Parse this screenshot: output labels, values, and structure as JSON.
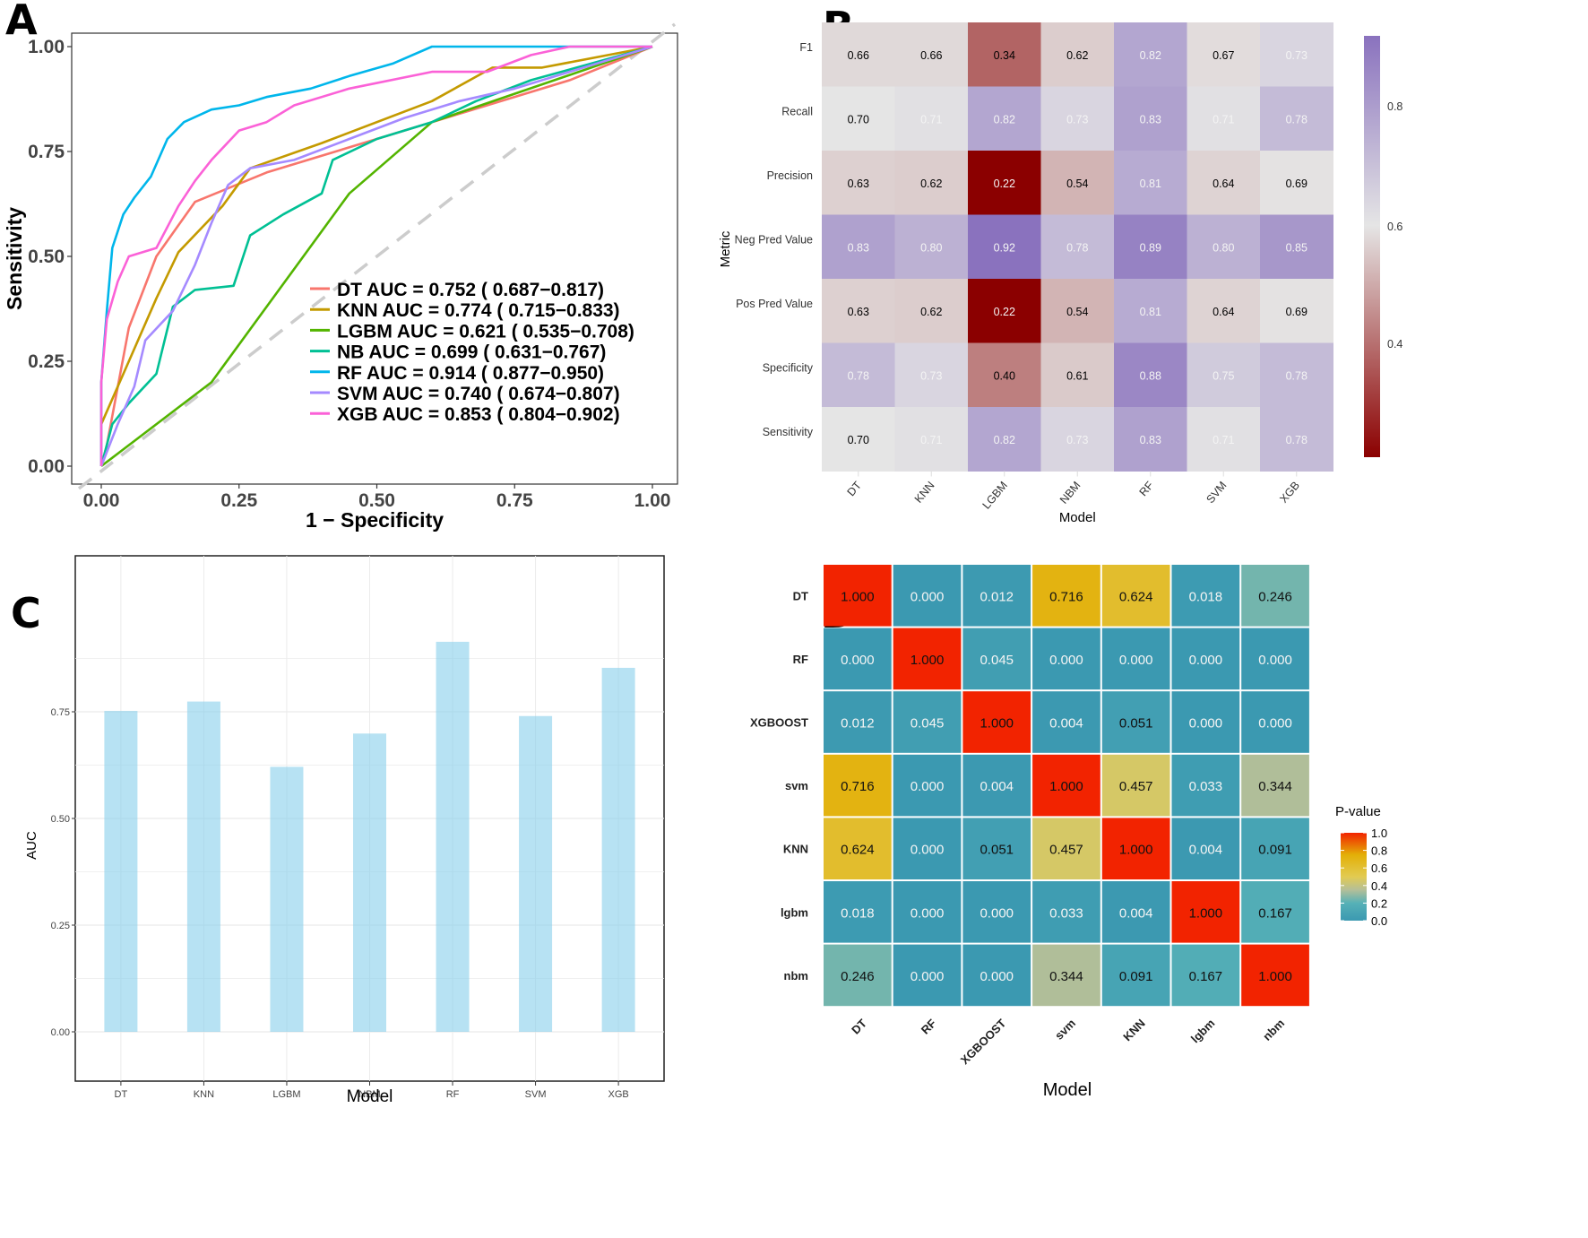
{
  "chart_data": [
    {
      "panel": "A",
      "type": "line",
      "title": "",
      "xlabel": "1 − Specificity",
      "ylabel": "Sensitivity",
      "xlim": [
        0,
        1
      ],
      "ylim": [
        0,
        1
      ],
      "xticks": [
        "0.00",
        "0.25",
        "0.50",
        "0.75",
        "1.00"
      ],
      "yticks": [
        "0.00",
        "0.25",
        "0.50",
        "0.75",
        "1.00"
      ],
      "grid": false,
      "legend_position": "bottom-right",
      "reference_line": {
        "from": [
          0,
          0
        ],
        "to": [
          1,
          1
        ],
        "style": "dashed",
        "color": "#cccccc"
      },
      "series": [
        {
          "name": "DT",
          "label": "DT AUC = 0.752 ( 0.687−0.817)",
          "auc": 0.752,
          "ci": [
            0.687,
            0.817
          ],
          "color": "#F8766D",
          "points": [
            [
              0,
              0
            ],
            [
              0.01,
              0.05
            ],
            [
              0.05,
              0.33
            ],
            [
              0.1,
              0.5
            ],
            [
              0.17,
              0.63
            ],
            [
              0.3,
              0.7
            ],
            [
              0.5,
              0.78
            ],
            [
              0.7,
              0.86
            ],
            [
              0.85,
              0.92
            ],
            [
              1,
              1
            ]
          ]
        },
        {
          "name": "KNN",
          "label": "KNN AUC = 0.774 ( 0.715−0.833)",
          "auc": 0.774,
          "ci": [
            0.715,
            0.833
          ],
          "color": "#C49A00",
          "points": [
            [
              0,
              0.1
            ],
            [
              0.05,
              0.25
            ],
            [
              0.1,
              0.4
            ],
            [
              0.14,
              0.51
            ],
            [
              0.22,
              0.62
            ],
            [
              0.27,
              0.71
            ],
            [
              0.4,
              0.77
            ],
            [
              0.6,
              0.87
            ],
            [
              0.71,
              0.95
            ],
            [
              0.8,
              0.95
            ],
            [
              1,
              1
            ]
          ]
        },
        {
          "name": "LGBM",
          "label": "LGBM AUC = 0.621 ( 0.535−0.708)",
          "auc": 0.621,
          "ci": [
            0.535,
            0.708
          ],
          "color": "#53B400",
          "points": [
            [
              0,
              0
            ],
            [
              0.2,
              0.2
            ],
            [
              0.45,
              0.65
            ],
            [
              0.6,
              0.82
            ],
            [
              1,
              1
            ]
          ]
        },
        {
          "name": "NB",
          "label": "NB AUC = 0.699 ( 0.631−0.767)",
          "auc": 0.699,
          "ci": [
            0.631,
            0.767
          ],
          "color": "#00C094",
          "points": [
            [
              0,
              0
            ],
            [
              0.02,
              0.1
            ],
            [
              0.05,
              0.15
            ],
            [
              0.1,
              0.22
            ],
            [
              0.13,
              0.38
            ],
            [
              0.17,
              0.42
            ],
            [
              0.24,
              0.43
            ],
            [
              0.27,
              0.55
            ],
            [
              0.33,
              0.6
            ],
            [
              0.4,
              0.65
            ],
            [
              0.42,
              0.73
            ],
            [
              0.5,
              0.78
            ],
            [
              0.6,
              0.82
            ],
            [
              0.68,
              0.87
            ],
            [
              0.78,
              0.92
            ],
            [
              1,
              1
            ]
          ]
        },
        {
          "name": "RF",
          "label": "RF AUC = 0.914 ( 0.877−0.950)",
          "auc": 0.914,
          "ci": [
            0.877,
            0.95
          ],
          "color": "#00B6EB",
          "points": [
            [
              0,
              0
            ],
            [
              0,
              0.2
            ],
            [
              0.01,
              0.37
            ],
            [
              0.02,
              0.52
            ],
            [
              0.04,
              0.6
            ],
            [
              0.06,
              0.64
            ],
            [
              0.09,
              0.69
            ],
            [
              0.12,
              0.78
            ],
            [
              0.15,
              0.82
            ],
            [
              0.2,
              0.85
            ],
            [
              0.25,
              0.86
            ],
            [
              0.3,
              0.88
            ],
            [
              0.38,
              0.9
            ],
            [
              0.45,
              0.93
            ],
            [
              0.53,
              0.96
            ],
            [
              0.6,
              1
            ],
            [
              1,
              1
            ]
          ]
        },
        {
          "name": "SVM",
          "label": "SVM AUC = 0.740 ( 0.674−0.807)",
          "auc": 0.74,
          "ci": [
            0.674,
            0.807
          ],
          "color": "#A58AFF",
          "points": [
            [
              0,
              0
            ],
            [
              0.03,
              0.1
            ],
            [
              0.06,
              0.19
            ],
            [
              0.08,
              0.3
            ],
            [
              0.13,
              0.37
            ],
            [
              0.17,
              0.48
            ],
            [
              0.2,
              0.58
            ],
            [
              0.23,
              0.67
            ],
            [
              0.27,
              0.71
            ],
            [
              0.35,
              0.73
            ],
            [
              0.45,
              0.78
            ],
            [
              0.55,
              0.83
            ],
            [
              0.65,
              0.87
            ],
            [
              0.75,
              0.9
            ],
            [
              1,
              1
            ]
          ]
        },
        {
          "name": "XGB",
          "label": "XGB AUC = 0.853 ( 0.804−0.902)",
          "auc": 0.853,
          "ci": [
            0.804,
            0.902
          ],
          "color": "#FB61D7",
          "points": [
            [
              0,
              0
            ],
            [
              0,
              0.2
            ],
            [
              0.01,
              0.35
            ],
            [
              0.03,
              0.44
            ],
            [
              0.05,
              0.5
            ],
            [
              0.1,
              0.52
            ],
            [
              0.14,
              0.62
            ],
            [
              0.17,
              0.68
            ],
            [
              0.2,
              0.73
            ],
            [
              0.25,
              0.8
            ],
            [
              0.3,
              0.82
            ],
            [
              0.35,
              0.86
            ],
            [
              0.45,
              0.9
            ],
            [
              0.6,
              0.94
            ],
            [
              0.7,
              0.94
            ],
            [
              0.78,
              0.98
            ],
            [
              0.85,
              1
            ],
            [
              1,
              1
            ]
          ]
        }
      ]
    },
    {
      "panel": "B",
      "type": "heatmap",
      "xlabel": "Model",
      "ylabel": "Metric",
      "x": [
        "DT",
        "KNN",
        "LGBM",
        "NBM",
        "RF",
        "SVM",
        "XGB"
      ],
      "y": [
        "F1",
        "Recall",
        "Precision",
        "Neg Pred Value",
        "Pos Pred Value",
        "Specificity",
        "Sensitivity"
      ],
      "values": [
        [
          0.66,
          0.66,
          0.34,
          0.62,
          0.82,
          0.67,
          0.73
        ],
        [
          0.7,
          0.71,
          0.82,
          0.73,
          0.83,
          0.71,
          0.78
        ],
        [
          0.63,
          0.62,
          0.22,
          0.54,
          0.81,
          0.64,
          0.69
        ],
        [
          0.83,
          0.8,
          0.92,
          0.78,
          0.89,
          0.8,
          0.85
        ],
        [
          0.63,
          0.62,
          0.22,
          0.54,
          0.81,
          0.64,
          0.69
        ],
        [
          0.78,
          0.73,
          0.4,
          0.61,
          0.88,
          0.75,
          0.78
        ],
        [
          0.7,
          0.71,
          0.82,
          0.73,
          0.83,
          0.71,
          0.78
        ]
      ],
      "colorbar": {
        "ticks": [
          "0.4",
          "0.6",
          "0.8"
        ],
        "range": [
          0.22,
          0.92
        ],
        "low_color": "#8B0000",
        "mid_color": "#E5E5E5",
        "high_color": "#8A72BE"
      }
    },
    {
      "panel": "C",
      "type": "bar",
      "title": "",
      "xlabel": "Model",
      "ylabel": "AUC",
      "categories": [
        "DT",
        "KNN",
        "LGBM",
        "NBM",
        "RF",
        "SVM",
        "XGB"
      ],
      "values": [
        0.752,
        0.774,
        0.621,
        0.699,
        0.914,
        0.74,
        0.853
      ],
      "ylim": [
        0,
        0.95
      ],
      "yticks": [
        "0.00",
        "0.25",
        "0.50",
        "0.75"
      ],
      "grid": true,
      "bar_color": "#87CEEB"
    },
    {
      "panel": "D",
      "type": "heatmap",
      "xlabel": "Model",
      "ylabel": "",
      "x": [
        "DT",
        "RF",
        "XGBOOST",
        "svm",
        "KNN",
        "lgbm",
        "nbm"
      ],
      "y": [
        "DT",
        "RF",
        "XGBOOST",
        "svm",
        "KNN",
        "lgbm",
        "nbm"
      ],
      "values": [
        [
          1.0,
          0.0,
          0.012,
          0.716,
          0.624,
          0.018,
          0.246
        ],
        [
          0.0,
          1.0,
          0.045,
          0.0,
          0.0,
          0.0,
          0.0
        ],
        [
          0.012,
          0.045,
          1.0,
          0.004,
          0.051,
          0.0,
          0.0
        ],
        [
          0.716,
          0.0,
          0.004,
          1.0,
          0.457,
          0.033,
          0.344
        ],
        [
          0.624,
          0.0,
          0.051,
          0.457,
          1.0,
          0.004,
          0.091
        ],
        [
          0.018,
          0.0,
          0.0,
          0.033,
          0.004,
          1.0,
          0.167
        ],
        [
          0.246,
          0.0,
          0.0,
          0.344,
          0.091,
          0.167,
          1.0
        ]
      ],
      "legend_title": "P-value",
      "colorbar": {
        "ticks": [
          "0.0",
          "0.2",
          "0.4",
          "0.6",
          "0.8",
          "1.0"
        ],
        "range": [
          0,
          1
        ],
        "stops": [
          "#3B99B1",
          "#56B1B7",
          "#EACB2B",
          "#E3AF07",
          "#F22300"
        ]
      }
    }
  ],
  "panel_labels": [
    "A",
    "B",
    "C",
    "D"
  ]
}
